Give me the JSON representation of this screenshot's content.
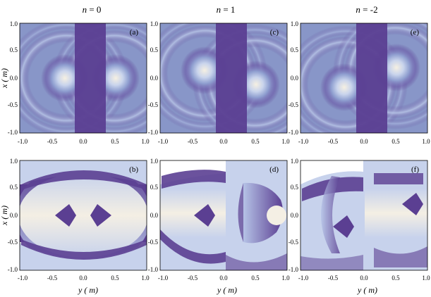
{
  "figure": {
    "columns": [
      {
        "title_var": "n",
        "title_eq": " = ",
        "title_val": "0"
      },
      {
        "title_var": "n",
        "title_eq": " = ",
        "title_val": "1"
      },
      {
        "title_var": "n",
        "title_eq": " = ",
        "title_val": "-2"
      }
    ],
    "panels": [
      {
        "id": "a",
        "label": "(a)",
        "row": 0,
        "col": 0
      },
      {
        "id": "c",
        "label": "(c)",
        "row": 0,
        "col": 1
      },
      {
        "id": "e",
        "label": "(e)",
        "row": 0,
        "col": 2
      },
      {
        "id": "b",
        "label": "(b)",
        "row": 1,
        "col": 0
      },
      {
        "id": "d",
        "label": "(d)",
        "row": 1,
        "col": 1
      },
      {
        "id": "f",
        "label": "(f)",
        "row": 1,
        "col": 2
      }
    ],
    "x_ticks": [
      "-1.0",
      "-0.5",
      "0.0",
      "0.5",
      "1.0"
    ],
    "y_ticks": [
      "1.0",
      "0.5",
      "0.0",
      "-0.5",
      "-1.0"
    ],
    "xlabel": "y (   m)",
    "ylabel": "x (   m)",
    "colors": {
      "dark": "#5b3f92",
      "mid": "#9fb0da",
      "light": "#f4efe4"
    }
  }
}
